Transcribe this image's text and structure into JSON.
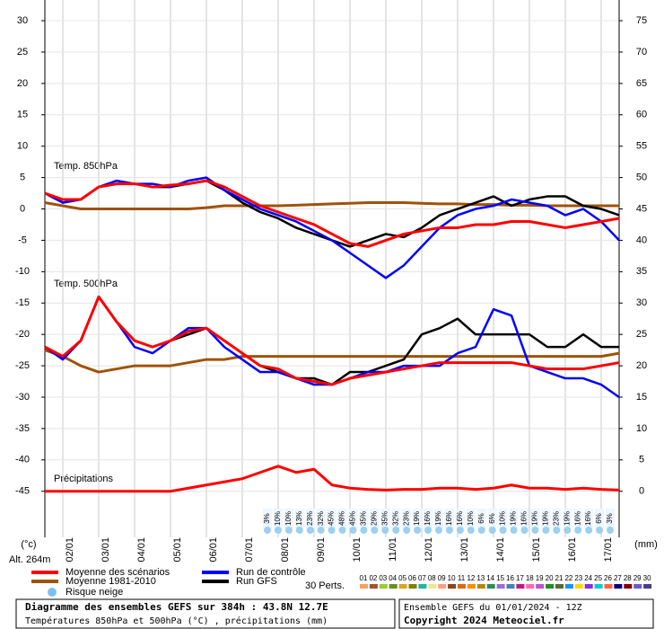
{
  "chart_data": {
    "type": "line",
    "labels": {
      "level_850": "Temp. 850hPa",
      "level_500": "Temp. 500hPa",
      "unit_left": "(°c)",
      "unit_right": "(mm)",
      "altitude": "Alt. 264m",
      "snow": "Risque neige",
      "perts": "30 Perts."
    },
    "footer": {
      "title": "Diagramme des ensembles GEFS sur 384h : 43.8N 12.7E",
      "subtitle": "Températures 850hPa et 500hPa (°C) , précipitations (mm)",
      "run": "Ensemble GEFS du 01/01/2024 - 12Z",
      "copyright": "Copyright 2024 Meteociel.fr"
    },
    "x": [
      0,
      12,
      24,
      36,
      48,
      60,
      72,
      84,
      96,
      108,
      120,
      132,
      144,
      156,
      168,
      180,
      192,
      204,
      216,
      228,
      240,
      252,
      264,
      276,
      288,
      300,
      312,
      324,
      336,
      348,
      360,
      372,
      384
    ],
    "xlim": [
      0,
      384
    ],
    "xticks": [
      {
        "value": 12,
        "label": "02/01"
      },
      {
        "value": 36,
        "label": "03/01"
      },
      {
        "value": 60,
        "label": "04/01"
      },
      {
        "value": 84,
        "label": "05/01"
      },
      {
        "value": 108,
        "label": "06/01"
      },
      {
        "value": 132,
        "label": "07/01"
      },
      {
        "value": 156,
        "label": "08/01"
      },
      {
        "value": 180,
        "label": "09/01"
      },
      {
        "value": 204,
        "label": "10/01"
      },
      {
        "value": 228,
        "label": "11/01"
      },
      {
        "value": 252,
        "label": "12/01"
      },
      {
        "value": 276,
        "label": "13/01"
      },
      {
        "value": 300,
        "label": "14/01"
      },
      {
        "value": 324,
        "label": "15/01"
      },
      {
        "value": 348,
        "label": "16/01"
      },
      {
        "value": 372,
        "label": "17/01"
      }
    ],
    "ylim": [
      -51.2,
      33.3
    ],
    "yticks": [
      30,
      25,
      20,
      15,
      10,
      5,
      0,
      -5,
      -10,
      -15,
      -20,
      -25,
      -30,
      -35,
      -40,
      -45
    ],
    "y2lim": [
      -6.2,
      78.3
    ],
    "y2ticks": [
      75,
      70,
      65,
      60,
      55,
      50,
      45,
      40,
      35,
      30,
      25,
      20,
      15,
      10,
      5,
      0
    ],
    "grid": true,
    "series": [
      {
        "name": "Moyenne des scénarios",
        "color": "#ff0000",
        "values": [
          2.5,
          1.5,
          1.5,
          3.5,
          4,
          4,
          3.5,
          3.8,
          4,
          4.5,
          3.5,
          2,
          0.5,
          -0.5,
          -1.5,
          -2.5,
          -4,
          -5.5,
          -6,
          -5,
          -4,
          -3.5,
          -3,
          -3,
          -2.5,
          -2.5,
          -2,
          -2,
          -2.5,
          -3,
          -2.5,
          -2,
          -1.5
        ],
        "values_500": [
          -22,
          -23.5,
          -21,
          -14,
          -18,
          -21,
          -22,
          -21,
          -19.5,
          -19,
          -21,
          -23,
          -25,
          -25.5,
          -27,
          -27.5,
          -28,
          -27,
          -26.5,
          -26,
          -25.5,
          -25,
          -24.5,
          -24.5,
          -24.5,
          -24.5,
          -24.5,
          -25,
          -25.5,
          -25.5,
          -25.5,
          -25,
          -24.5
        ]
      },
      {
        "name": "Moyenne 1981-2010",
        "color": "#a0520a",
        "values": [
          1,
          0.5,
          0,
          0,
          0,
          0,
          0,
          0,
          0,
          0.2,
          0.5,
          0.5,
          0.5,
          0.5,
          0.6,
          0.7,
          0.8,
          0.9,
          1,
          1,
          1,
          0.9,
          0.8,
          0.8,
          0.7,
          0.7,
          0.6,
          0.6,
          0.5,
          0.5,
          0.5,
          0.5,
          0.5
        ],
        "values_500": [
          -22.5,
          -23.5,
          -25,
          -26,
          -25.5,
          -25,
          -25,
          -25,
          -24.5,
          -24,
          -24,
          -23.5,
          -23.5,
          -23.5,
          -23.5,
          -23.5,
          -23.5,
          -23.5,
          -23.5,
          -23.5,
          -23.5,
          -23.5,
          -23.5,
          -23.5,
          -23.5,
          -23.5,
          -23.5,
          -23.5,
          -23.5,
          -23.5,
          -23.5,
          -23.5,
          -23
        ]
      },
      {
        "name": "Run de contrôle",
        "color": "#0000ff",
        "values": [
          2.5,
          1,
          1.5,
          3.5,
          4.5,
          4,
          4,
          3.5,
          4.5,
          5,
          3,
          1.5,
          0,
          -1,
          -2,
          -3.5,
          -5,
          -7,
          -9,
          -11,
          -9,
          -6,
          -3,
          -1,
          0,
          0.5,
          1.5,
          1,
          0.5,
          -1,
          0,
          -2,
          -5
        ],
        "values_500": [
          -22,
          -24,
          -21,
          -14,
          -18,
          -22,
          -23,
          -21,
          -19,
          -19,
          -22,
          -24,
          -26,
          -26,
          -27,
          -28,
          -28,
          -27,
          -26,
          -26,
          -25,
          -25,
          -25,
          -23,
          -22,
          -16,
          -17,
          -25,
          -26,
          -27,
          -27,
          -28,
          -30
        ]
      },
      {
        "name": "Run GFS",
        "color": "#000000",
        "values": [
          2.5,
          1,
          1.5,
          3.5,
          4,
          4,
          3.5,
          3.5,
          4,
          4.5,
          3,
          1,
          -0.5,
          -1.5,
          -3,
          -4,
          -5,
          -6,
          -5,
          -4,
          -4.5,
          -3,
          -1,
          0,
          1,
          2,
          0.5,
          1.5,
          2,
          2,
          0.5,
          0,
          -1
        ],
        "values_500": [
          -22,
          -23.5,
          -21,
          -14,
          -18,
          -21,
          -22,
          -21,
          -20,
          -19,
          -21,
          -23,
          -25,
          -26,
          -27,
          -27,
          -28,
          -26,
          -26,
          -25,
          -24,
          -20,
          -19,
          -17.5,
          -20,
          -20,
          -20,
          -20,
          -22,
          -22,
          -20,
          -22,
          -22
        ]
      }
    ],
    "precipitation": {
      "label": "Précipitations",
      "axis": "y2",
      "color": "#ff0000",
      "values": [
        0,
        0,
        0,
        0,
        0,
        0,
        0,
        0,
        0.5,
        1,
        1.5,
        2,
        3,
        4,
        3,
        3.5,
        1,
        0.5,
        0.3,
        0.2,
        0.3,
        0.3,
        0.5,
        0.5,
        0.3,
        0.5,
        1,
        0.5,
        0.5,
        0.3,
        0.5,
        0.3,
        0.2
      ]
    },
    "snow_risk": [
      "3%",
      "10%",
      "10%",
      "13%",
      "23%",
      "32%",
      "45%",
      "48%",
      "45%",
      "35%",
      "29%",
      "35%",
      "32%",
      "23%",
      "19%",
      "16%",
      "19%",
      "16%",
      "16%",
      "10%",
      "6%",
      "6%",
      "10%",
      "19%",
      "16%",
      "19%",
      "19%",
      "23%",
      "19%",
      "16%",
      "16%",
      "6%",
      "3%"
    ],
    "perturbations": {
      "names": [
        "01",
        "02",
        "03",
        "04",
        "05",
        "06",
        "07",
        "08",
        "09",
        "10",
        "11",
        "12",
        "13",
        "14",
        "15",
        "16",
        "17",
        "18",
        "19",
        "20",
        "21",
        "22",
        "23",
        "24",
        "25",
        "26",
        "27",
        "28",
        "29",
        "30"
      ],
      "colors": [
        "#f4a460",
        "#a0522d",
        "#9acd32",
        "#6b8e23",
        "#daa520",
        "#808000",
        "#20b2aa",
        "#f0e68c",
        "#ffa07a",
        "#8b4513",
        "#d2691e",
        "#ff8c00",
        "#b8860b",
        "#2e8b57",
        "#9370db",
        "#4682b4",
        "#c71585",
        "#ff69b4",
        "#ba55d3",
        "#228b22",
        "#556b2f",
        "#1e90ff",
        "#ffd700",
        "#8a2be2",
        "#00ced1",
        "#ff6347",
        "#000080",
        "#800000",
        "#6a5acd",
        "#483d8b"
      ]
    }
  }
}
